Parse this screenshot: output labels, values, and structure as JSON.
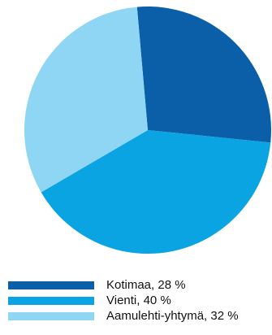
{
  "chart_data": {
    "type": "pie",
    "slices": [
      {
        "label": "Kotimaa, 28 %",
        "value": 28,
        "color": "#0b5fa8"
      },
      {
        "label": "Vienti, 40 %",
        "value": 40,
        "color": "#0aa4e2"
      },
      {
        "label": "Aamulehti-yhtymä, 32 %",
        "value": 32,
        "color": "#8fd6f4"
      }
    ],
    "legend_position": "bottom-right"
  }
}
